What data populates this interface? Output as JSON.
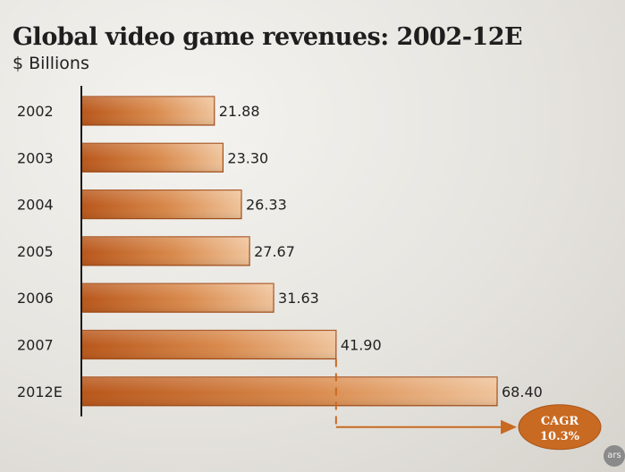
{
  "title": "Global video game revenues: 2002-12E",
  "subtitle": "$ Billions",
  "chart_data": {
    "type": "bar",
    "orientation": "horizontal",
    "title": "Global video game revenues: 2002-12E",
    "subtitle": "$ Billions",
    "categories": [
      "2002",
      "2003",
      "2004",
      "2005",
      "2006",
      "2007",
      "2012E"
    ],
    "values": [
      21.88,
      23.3,
      26.33,
      27.67,
      31.63,
      41.9,
      68.4
    ],
    "value_labels": [
      "21.88",
      "23.30",
      "26.33",
      "27.67",
      "31.63",
      "41.90",
      "68.40"
    ],
    "xlim": [
      0,
      68.4
    ],
    "grid": false,
    "annotation": {
      "line1": "CAGR",
      "line2": "10.3%",
      "from": "2007",
      "to": "2012E"
    }
  },
  "colors": {
    "bar_dark": "#b8561a",
    "bar_light": "#efc39a",
    "bar_stroke": "#a34d18",
    "annotation": "#c96a22",
    "axis": "#1a1a1a"
  },
  "logo_text": "ars"
}
